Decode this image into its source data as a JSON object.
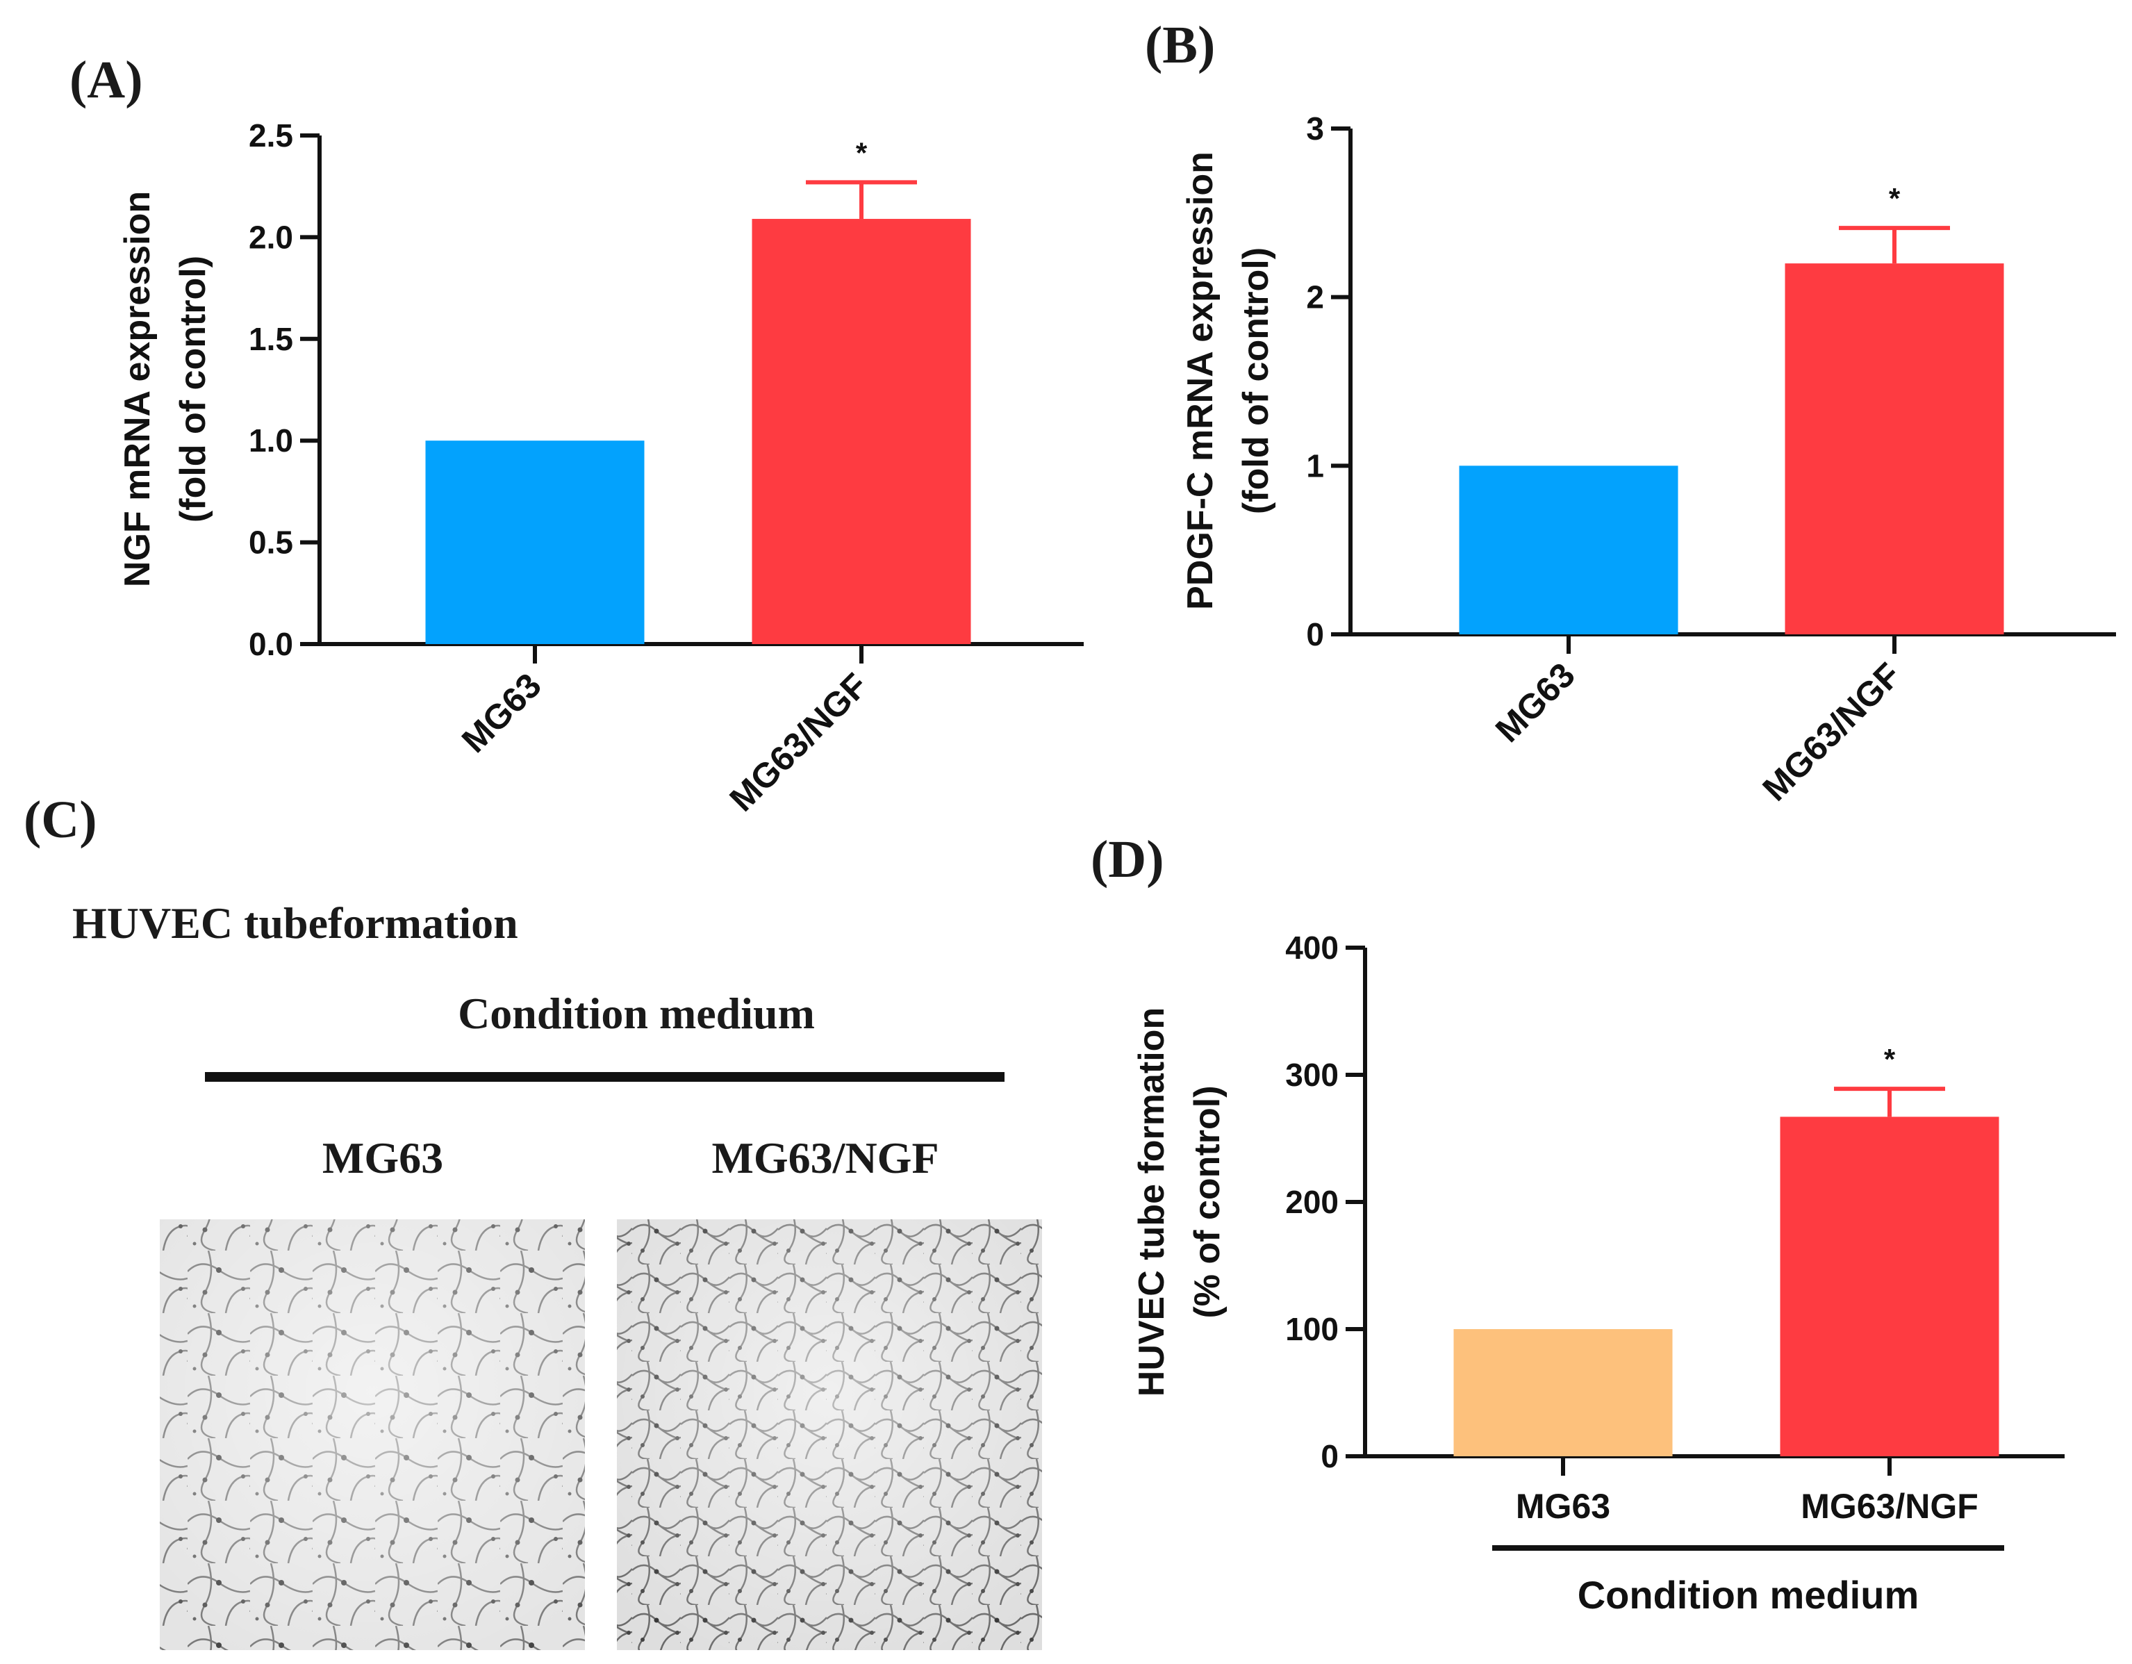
{
  "panels": {
    "a": {
      "label": "(A)"
    },
    "b": {
      "label": "(B)"
    },
    "c": {
      "label": "(C)",
      "title": "HUVEC tubeformation",
      "group_label": "Condition medium",
      "image_labels": [
        "MG63",
        "MG63/NGF"
      ]
    },
    "d": {
      "label": "(D)"
    }
  },
  "chart_data": [
    {
      "id": "A",
      "type": "bar",
      "categories": [
        "MG63",
        "MG63/NGF"
      ],
      "values": [
        1.0,
        2.09
      ],
      "error_bars": [
        0,
        0.18
      ],
      "significance": [
        "",
        "*"
      ],
      "colors": [
        "#03A2FD",
        "#FE3B41"
      ],
      "ylabel": [
        "NGF mRNA expression",
        "(fold of control)"
      ],
      "ylim": [
        0,
        2.5
      ],
      "yticks": [
        "0.0",
        "0.5",
        "1.0",
        "1.5",
        "2.0",
        "2.5"
      ],
      "xlabel": "",
      "xtick_rotation": "45"
    },
    {
      "id": "B",
      "type": "bar",
      "categories": [
        "MG63",
        "MG63/NGF"
      ],
      "values": [
        1.0,
        2.2
      ],
      "error_bars": [
        0,
        0.21
      ],
      "significance": [
        "",
        "*"
      ],
      "colors": [
        "#03A2FD",
        "#FE3B41"
      ],
      "ylabel": [
        "PDGF-C mRNA expression",
        "(fold of control)"
      ],
      "ylim": [
        0,
        3
      ],
      "yticks": [
        "0",
        "1",
        "2",
        "3"
      ],
      "xlabel": "",
      "xtick_rotation": "45"
    },
    {
      "id": "D",
      "type": "bar",
      "categories": [
        "MG63",
        "MG63/NGF"
      ],
      "values": [
        100,
        267
      ],
      "error_bars": [
        0,
        22
      ],
      "significance": [
        "",
        "*"
      ],
      "colors": [
        "#FDC17C",
        "#FE3B41"
      ],
      "ylabel": [
        "HUVEC tube formation",
        "(% of control)"
      ],
      "ylim": [
        0,
        400
      ],
      "yticks": [
        "0",
        "100",
        "200",
        "300",
        "400"
      ],
      "xlabel": "Condition medium",
      "xtick_rotation": "0"
    }
  ]
}
